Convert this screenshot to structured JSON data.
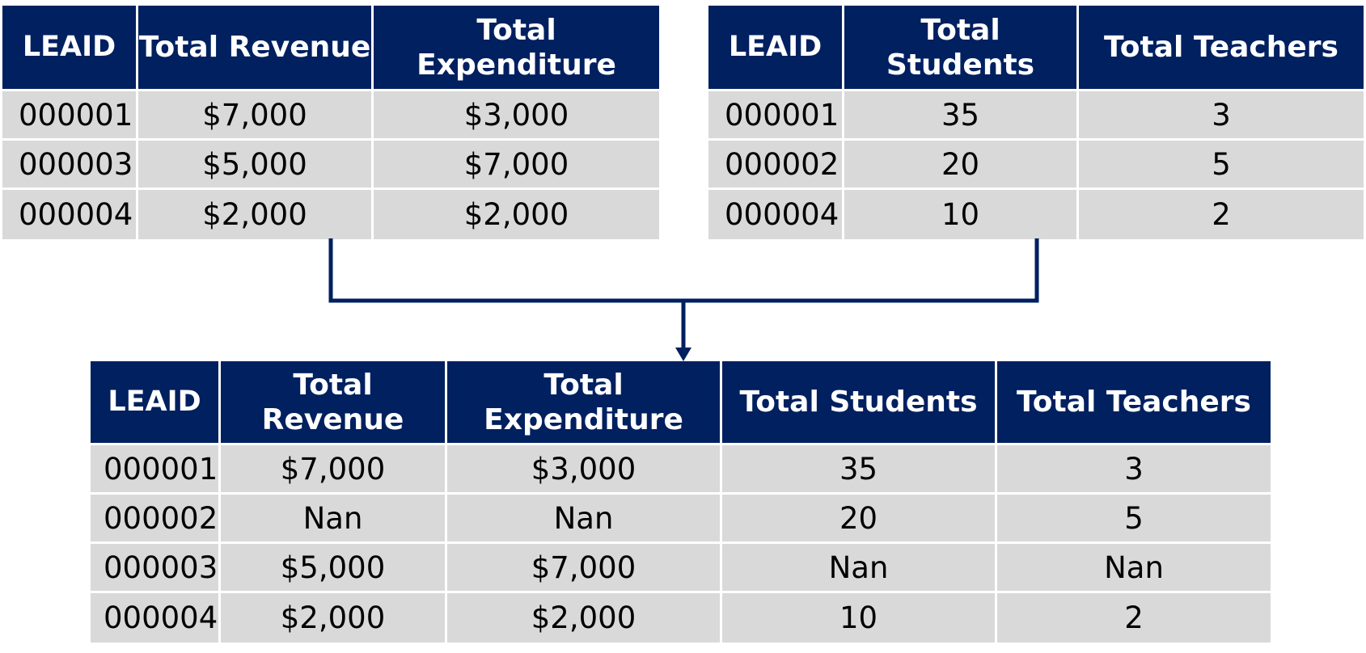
{
  "left_table": {
    "headers": [
      "LEAID",
      "Total Revenue",
      "Total Expenditure"
    ],
    "rows": [
      [
        "000001",
        "$7,000",
        "$3,000"
      ],
      [
        "000003",
        "$5,000",
        "$7,000"
      ],
      [
        "000004",
        "$2,000",
        "$2,000"
      ]
    ]
  },
  "right_table": {
    "headers": [
      "LEAID",
      "Total Students",
      "Total Teachers"
    ],
    "rows": [
      [
        "000001",
        "35",
        "3"
      ],
      [
        "000002",
        "20",
        "5"
      ],
      [
        "000004",
        "10",
        "2"
      ]
    ]
  },
  "merged_table": {
    "headers": [
      "LEAID",
      "Total Revenue",
      "Total Expenditure",
      "Total Students",
      "Total Teachers"
    ],
    "rows": [
      [
        "000001",
        "$7,000",
        "$3,000",
        "35",
        "3"
      ],
      [
        "000002",
        "Nan",
        "Nan",
        "20",
        "5"
      ],
      [
        "000003",
        "$5,000",
        "$7,000",
        "Nan",
        "Nan"
      ],
      [
        "000004",
        "$2,000",
        "$2,000",
        "10",
        "2"
      ]
    ]
  },
  "colors": {
    "header_bg": "#002060",
    "cell_bg": "#d9d9d9",
    "connector": "#002060"
  }
}
